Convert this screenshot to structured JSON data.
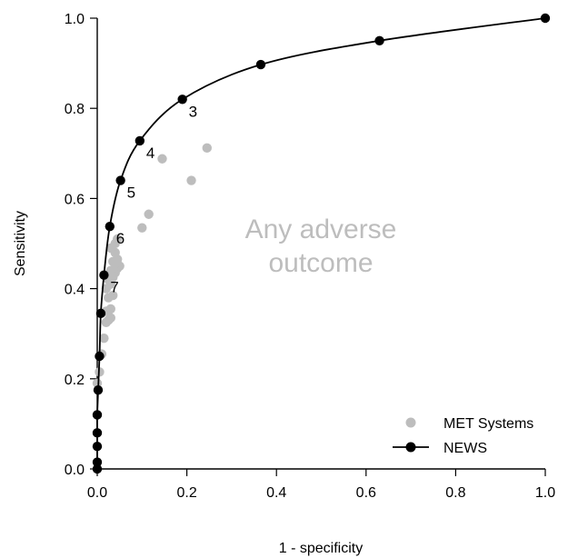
{
  "chart_data": {
    "type": "scatter",
    "xlabel": "1 - specificity",
    "ylabel": "Sensitivity",
    "xlim": [
      0,
      1
    ],
    "ylim": [
      0,
      1
    ],
    "xticks": [
      "0.0",
      "0.2",
      "0.4",
      "0.6",
      "0.8",
      "1.0"
    ],
    "yticks": [
      "0.0",
      "0.2",
      "0.4",
      "0.6",
      "0.8",
      "1.0"
    ],
    "annotation": [
      "Any adverse",
      "outcome"
    ],
    "legend": {
      "position": "bottom-right",
      "entries": [
        {
          "label": "MET Systems",
          "color": "#bdbdbd",
          "marker": "point"
        },
        {
          "label": "NEWS",
          "color": "#000000",
          "marker": "line-point"
        }
      ]
    },
    "series": [
      {
        "name": "MET Systems",
        "color": "#bdbdbd",
        "points": [
          [
            0.0,
            0.12
          ],
          [
            0.0,
            0.19
          ],
          [
            0.005,
            0.215
          ],
          [
            0.01,
            0.255
          ],
          [
            0.015,
            0.29
          ],
          [
            0.02,
            0.325
          ],
          [
            0.025,
            0.33
          ],
          [
            0.03,
            0.335
          ],
          [
            0.02,
            0.35
          ],
          [
            0.03,
            0.355
          ],
          [
            0.025,
            0.38
          ],
          [
            0.035,
            0.385
          ],
          [
            0.02,
            0.4
          ],
          [
            0.03,
            0.41
          ],
          [
            0.025,
            0.42
          ],
          [
            0.035,
            0.425
          ],
          [
            0.04,
            0.435
          ],
          [
            0.03,
            0.44
          ],
          [
            0.045,
            0.445
          ],
          [
            0.05,
            0.45
          ],
          [
            0.04,
            0.455
          ],
          [
            0.035,
            0.46
          ],
          [
            0.045,
            0.465
          ],
          [
            0.04,
            0.48
          ],
          [
            0.03,
            0.49
          ],
          [
            0.04,
            0.5
          ],
          [
            0.045,
            0.51
          ],
          [
            0.1,
            0.535
          ],
          [
            0.115,
            0.565
          ],
          [
            0.21,
            0.64
          ],
          [
            0.145,
            0.688
          ],
          [
            0.245,
            0.712
          ]
        ]
      },
      {
        "name": "NEWS",
        "color": "#000000",
        "points": [
          [
            0.0,
            0.0
          ],
          [
            0.0,
            0.015
          ],
          [
            0.0,
            0.05
          ],
          [
            0.0,
            0.08
          ],
          [
            0.0,
            0.12
          ],
          [
            0.002,
            0.175
          ],
          [
            0.005,
            0.25
          ],
          [
            0.008,
            0.345
          ],
          [
            0.015,
            0.43
          ],
          [
            0.028,
            0.538
          ],
          [
            0.052,
            0.64
          ],
          [
            0.095,
            0.728
          ],
          [
            0.19,
            0.82
          ],
          [
            0.365,
            0.897
          ],
          [
            0.63,
            0.95
          ],
          [
            1.0,
            1.0
          ]
        ],
        "point_labels": [
          {
            "text": "3",
            "x": 0.19,
            "y": 0.82
          },
          {
            "text": "4",
            "x": 0.095,
            "y": 0.728
          },
          {
            "text": "5",
            "x": 0.052,
            "y": 0.64
          },
          {
            "text": "6",
            "x": 0.028,
            "y": 0.538
          },
          {
            "text": "7",
            "x": 0.015,
            "y": 0.43
          }
        ]
      }
    ]
  }
}
